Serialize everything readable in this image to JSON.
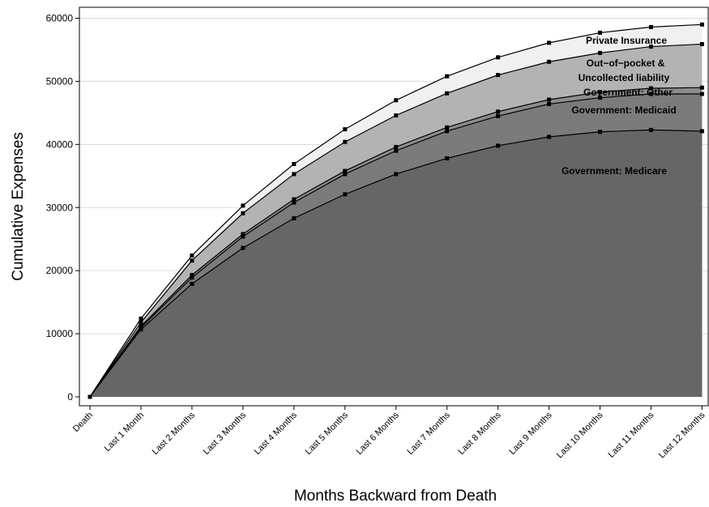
{
  "chart_data": {
    "type": "area",
    "stacked": true,
    "title": "",
    "xlabel": "Months Backward from Death",
    "ylabel": "Cumulative Expenses",
    "categories": [
      "Death",
      "Last 1 Month",
      "Last 2 Months",
      "Last 3 Months",
      "Last 4 Months",
      "Last 5 Months",
      "Last 6 Months",
      "Last 7 Months",
      "Last 8 Months",
      "Last 9 Months",
      "Last 10 Months",
      "Last 11 Months",
      "Last 12 Months"
    ],
    "ylim": [
      0,
      62000
    ],
    "yticks": [
      0,
      10000,
      20000,
      30000,
      40000,
      50000,
      60000
    ],
    "grid": true,
    "series": [
      {
        "name": "Government: Medicare",
        "color": "#666666",
        "cumulative": [
          0,
          10700,
          17900,
          23600,
          28300,
          32100,
          35300,
          37800,
          39800,
          41200,
          42000,
          42300,
          42100
        ]
      },
      {
        "name": "Government: Medicaid",
        "color": "#7b7b7b",
        "cumulative": [
          0,
          11000,
          18900,
          25400,
          30800,
          35300,
          39000,
          42100,
          44500,
          46400,
          47400,
          48000,
          48000
        ]
      },
      {
        "name": "Government: Other",
        "color": "#8c8c8c",
        "cumulative": [
          0,
          11200,
          19300,
          25800,
          31300,
          35800,
          39600,
          42700,
          45200,
          47100,
          48300,
          48900,
          49000
        ]
      },
      {
        "name": "Out-of-pocket & Uncollected liability",
        "color": "#b3b3b3",
        "cumulative": [
          0,
          11800,
          21600,
          29100,
          35300,
          40400,
          44600,
          48100,
          51000,
          53100,
          54500,
          55500,
          55900
        ]
      },
      {
        "name": "Private Insurance",
        "color": "#f0f0f0",
        "cumulative": [
          0,
          12400,
          22400,
          30300,
          36900,
          42400,
          47000,
          50800,
          53800,
          56100,
          57700,
          58600,
          59000
        ]
      }
    ],
    "series_labels": {
      "private": "Private Insurance",
      "oop_line1": "Out−of−pocket &",
      "oop_line2": "Uncollected liability",
      "gov_other": "Government: Other",
      "medicaid": "Government: Medicaid",
      "medicare": "Government: Medicare"
    }
  }
}
